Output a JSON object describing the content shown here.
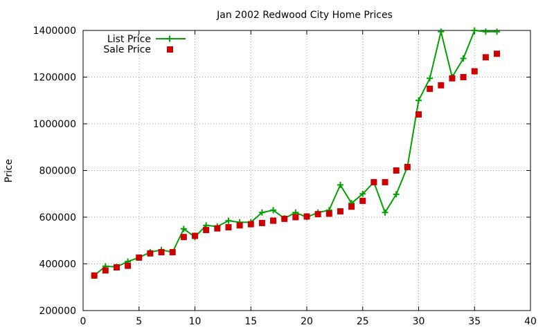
{
  "chart_data": {
    "type": "line",
    "title": "Jan 2002 Redwood City Home Prices",
    "xlabel": "",
    "ylabel": "Price",
    "xlim": [
      0,
      40
    ],
    "ylim": [
      200000,
      1400000
    ],
    "x_ticks": [
      0,
      5,
      10,
      15,
      20,
      25,
      30,
      35,
      40
    ],
    "y_ticks": [
      200000,
      400000,
      600000,
      800000,
      1000000,
      1200000,
      1400000
    ],
    "grid": true,
    "legend_position": "top-left",
    "series": [
      {
        "name": "List Price",
        "style": "line-with-plus-markers",
        "color": "#00a000",
        "points": [
          [
            1,
            350000
          ],
          [
            2,
            390000
          ],
          [
            3,
            387000
          ],
          [
            4,
            410000
          ],
          [
            5,
            427000
          ],
          [
            6,
            450000
          ],
          [
            7,
            460000
          ],
          [
            8,
            450000
          ],
          [
            9,
            550000
          ],
          [
            10,
            515000
          ],
          [
            11,
            565000
          ],
          [
            12,
            560000
          ],
          [
            13,
            585000
          ],
          [
            14,
            578000
          ],
          [
            15,
            578000
          ],
          [
            16,
            620000
          ],
          [
            17,
            630000
          ],
          [
            18,
            595000
          ],
          [
            19,
            620000
          ],
          [
            20,
            600000
          ],
          [
            21,
            620000
          ],
          [
            22,
            630000
          ],
          [
            23,
            738000
          ],
          [
            24,
            660000
          ],
          [
            25,
            700000
          ],
          [
            26,
            750000
          ],
          [
            27,
            620000
          ],
          [
            28,
            698000
          ],
          [
            29,
            815000
          ],
          [
            30,
            1100000
          ],
          [
            31,
            1195000
          ],
          [
            32,
            1395000
          ],
          [
            33,
            1200000
          ],
          [
            34,
            1280000
          ],
          [
            35,
            1400000
          ],
          [
            36,
            1395000
          ],
          [
            37,
            1395000
          ]
        ]
      },
      {
        "name": "Sale Price",
        "style": "square-markers",
        "color": "#cc0000",
        "points": [
          [
            1,
            350000
          ],
          [
            2,
            372000
          ],
          [
            3,
            385000
          ],
          [
            4,
            392000
          ],
          [
            5,
            427000
          ],
          [
            6,
            445000
          ],
          [
            7,
            450000
          ],
          [
            8,
            450000
          ],
          [
            9,
            515000
          ],
          [
            10,
            520000
          ],
          [
            11,
            545000
          ],
          [
            12,
            552000
          ],
          [
            13,
            557000
          ],
          [
            14,
            565000
          ],
          [
            15,
            570000
          ],
          [
            16,
            575000
          ],
          [
            17,
            585000
          ],
          [
            18,
            593000
          ],
          [
            19,
            600000
          ],
          [
            20,
            603000
          ],
          [
            21,
            613000
          ],
          [
            22,
            615000
          ],
          [
            23,
            625000
          ],
          [
            24,
            645000
          ],
          [
            25,
            670000
          ],
          [
            26,
            750000
          ],
          [
            27,
            750000
          ],
          [
            28,
            800000
          ],
          [
            29,
            815000
          ],
          [
            30,
            1040000
          ],
          [
            31,
            1150000
          ],
          [
            32,
            1165000
          ],
          [
            33,
            1195000
          ],
          [
            34,
            1200000
          ],
          [
            35,
            1225000
          ],
          [
            36,
            1285000
          ],
          [
            37,
            1300000
          ]
        ]
      }
    ]
  }
}
